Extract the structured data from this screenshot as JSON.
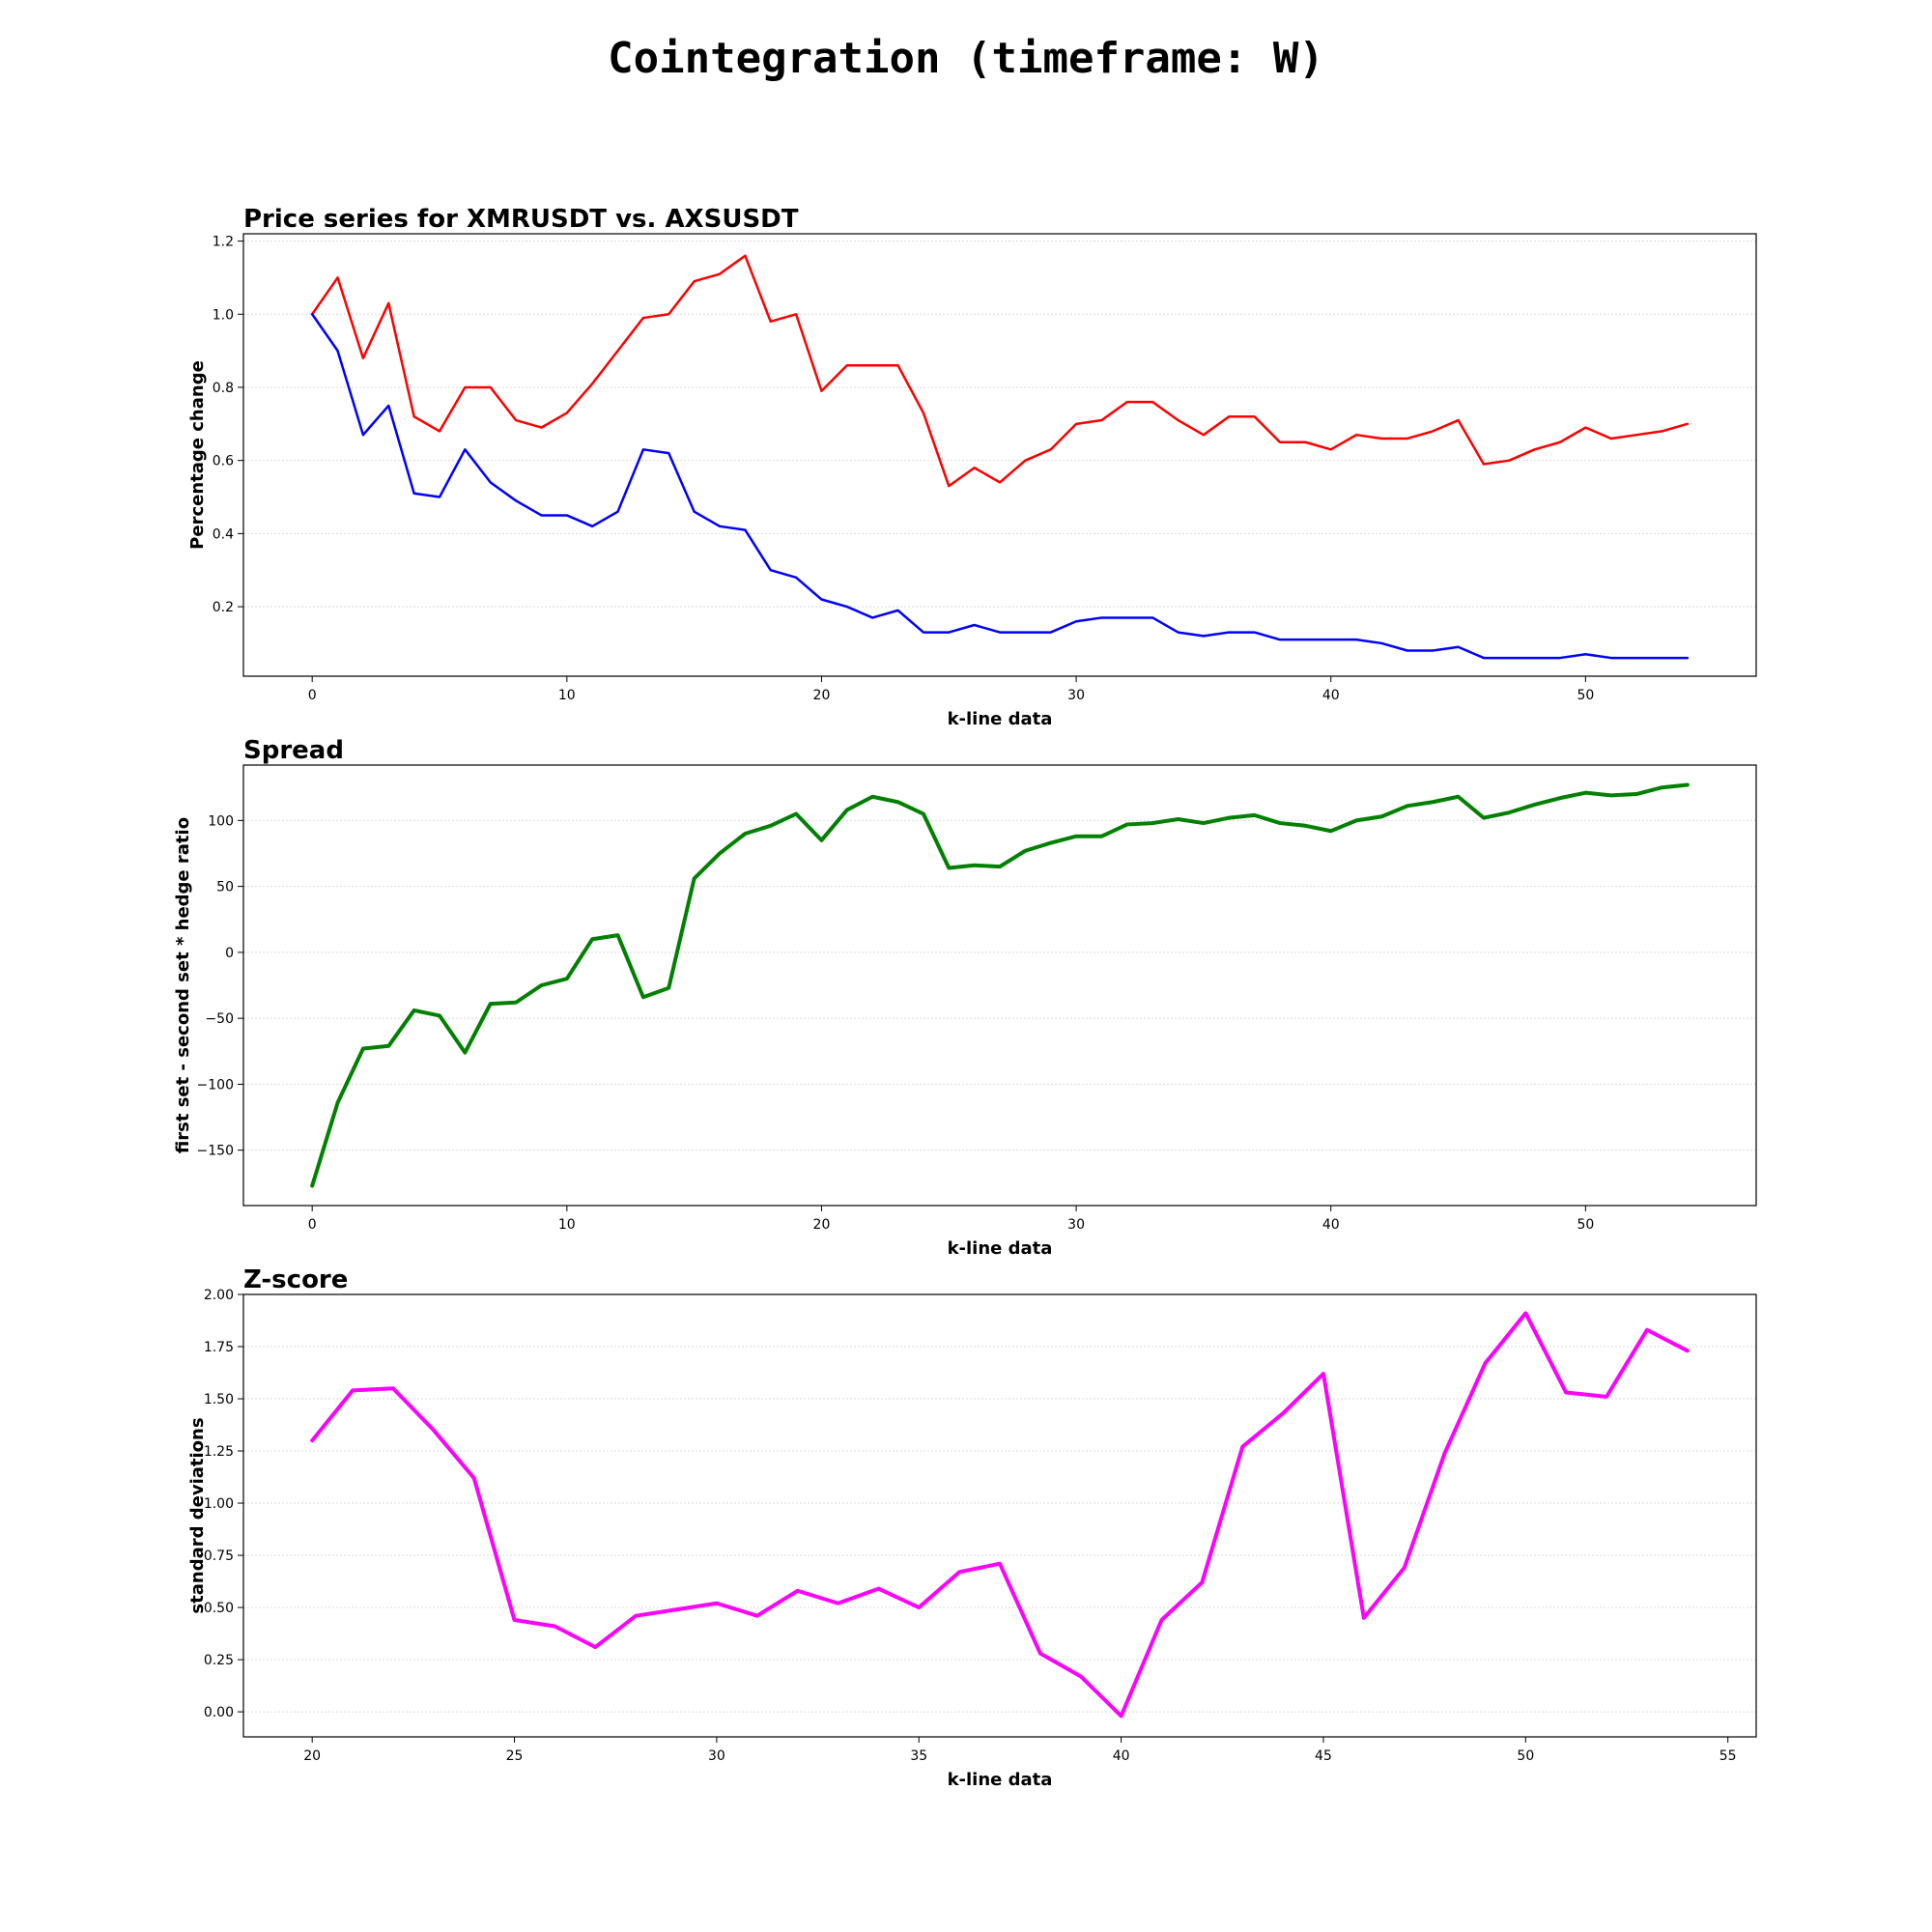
{
  "figure": {
    "suptitle": "Cointegration (timeframe: W)"
  },
  "chart_data": [
    {
      "type": "line",
      "title": "Price series for XMRUSDT vs. AXSUSDT",
      "xlabel": "k-line data",
      "ylabel": "Percentage change",
      "xlim": [
        -2.7,
        56.7
      ],
      "ylim": [
        0.01,
        1.22
      ],
      "xticks": [
        0,
        10,
        20,
        30,
        40,
        50
      ],
      "yticks": [
        0.2,
        0.4,
        0.6,
        0.8,
        1.0,
        1.2
      ],
      "ytick_labels": [
        "0.2",
        "0.4",
        "0.6",
        "0.8",
        "1.0",
        "1.2"
      ],
      "grid": "y",
      "x_start": 0,
      "series": [
        {
          "color": "#ff0000",
          "line_width": 2.5,
          "values": [
            1.0,
            1.1,
            0.88,
            1.03,
            0.72,
            0.68,
            0.8,
            0.8,
            0.71,
            0.69,
            0.73,
            0.81,
            0.9,
            0.99,
            1.0,
            1.09,
            1.11,
            1.16,
            0.98,
            1.0,
            0.79,
            0.86,
            0.86,
            0.86,
            0.73,
            0.53,
            0.58,
            0.54,
            0.6,
            0.63,
            0.7,
            0.71,
            0.76,
            0.76,
            0.71,
            0.67,
            0.72,
            0.72,
            0.65,
            0.65,
            0.63,
            0.67,
            0.66,
            0.66,
            0.68,
            0.71,
            0.59,
            0.6,
            0.63,
            0.65,
            0.69,
            0.66,
            0.67,
            0.68,
            0.7
          ]
        },
        {
          "color": "#0000ff",
          "line_width": 2.5,
          "values": [
            1.0,
            0.9,
            0.67,
            0.75,
            0.51,
            0.5,
            0.63,
            0.54,
            0.49,
            0.45,
            0.45,
            0.42,
            0.46,
            0.63,
            0.62,
            0.46,
            0.42,
            0.41,
            0.3,
            0.28,
            0.22,
            0.2,
            0.17,
            0.19,
            0.13,
            0.13,
            0.15,
            0.13,
            0.13,
            0.13,
            0.16,
            0.17,
            0.17,
            0.17,
            0.13,
            0.12,
            0.13,
            0.13,
            0.11,
            0.11,
            0.11,
            0.11,
            0.1,
            0.08,
            0.08,
            0.09,
            0.06,
            0.06,
            0.06,
            0.06,
            0.07,
            0.06,
            0.06,
            0.06,
            0.06
          ]
        }
      ]
    },
    {
      "type": "line",
      "title": "Spread",
      "xlabel": "k-line data",
      "ylabel": "first set - second set * hedge ratio",
      "xlim": [
        -2.7,
        56.7
      ],
      "ylim": [
        -192,
        142
      ],
      "xticks": [
        0,
        10,
        20,
        30,
        40,
        50
      ],
      "yticks": [
        -150,
        -100,
        -50,
        0,
        50,
        100
      ],
      "ytick_labels": [
        "−150",
        "−100",
        "−50",
        "0",
        "50",
        "100"
      ],
      "grid": "y",
      "x_start": 0,
      "series": [
        {
          "color": "#008000",
          "line_width": 4,
          "values": [
            -177,
            -114,
            -73,
            -71,
            -44,
            -48,
            -76,
            -39,
            -38,
            -25,
            -20,
            10,
            13,
            -34,
            -27,
            56,
            75,
            90,
            96,
            105,
            85,
            108,
            118,
            114,
            105,
            64,
            66,
            65,
            77,
            83,
            88,
            88,
            97,
            98,
            101,
            98,
            102,
            104,
            98,
            96,
            92,
            100,
            103,
            111,
            114,
            118,
            102,
            106,
            112,
            117,
            121,
            119,
            120,
            125,
            127
          ]
        }
      ]
    },
    {
      "type": "line",
      "title": "Z-score",
      "xlabel": "k-line data",
      "ylabel": "standard deviations",
      "xlim": [
        18.3,
        55.7
      ],
      "ylim": [
        -0.12,
        2.0
      ],
      "xticks": [
        20,
        25,
        30,
        35,
        40,
        45,
        50,
        55
      ],
      "yticks": [
        0.0,
        0.25,
        0.5,
        0.75,
        1.0,
        1.25,
        1.5,
        1.75,
        2.0
      ],
      "ytick_labels": [
        "0.00",
        "0.25",
        "0.50",
        "0.75",
        "1.00",
        "1.25",
        "1.50",
        "1.75",
        "2.00"
      ],
      "grid": "y",
      "x_start": 20,
      "series": [
        {
          "color": "#ff00ff",
          "line_width": 4,
          "values": [
            1.3,
            1.54,
            1.55,
            1.35,
            1.12,
            0.44,
            0.41,
            0.31,
            0.46,
            0.49,
            0.52,
            0.46,
            0.58,
            0.52,
            0.59,
            0.5,
            0.67,
            0.71,
            0.28,
            0.17,
            -0.02,
            0.44,
            0.62,
            1.27,
            1.43,
            1.62,
            0.45,
            0.69,
            1.24,
            1.67,
            1.91,
            1.53,
            1.51,
            1.83,
            1.73
          ]
        }
      ]
    }
  ]
}
